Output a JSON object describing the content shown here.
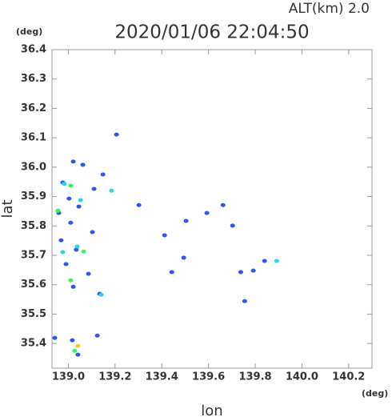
{
  "chart_data": {
    "type": "scatter",
    "title": "2020/01/06 22:04:50",
    "subtitle": "ALT(km) 2.0",
    "x_label": "lon",
    "y_label": "lat",
    "x_unit": "(deg)",
    "y_unit": "(deg)",
    "xlim": [
      138.93,
      140.3
    ],
    "ylim": [
      35.316,
      36.4
    ],
    "xticks": [
      {
        "value": 139,
        "label": "139.0"
      },
      139.2,
      139.4,
      139.6,
      139.8,
      {
        "value": 140,
        "label": "140.0"
      },
      140.2
    ],
    "yticks": [
      35.4,
      35.5,
      35.6,
      35.7,
      35.8,
      35.9,
      {
        "value": 36,
        "label": "36.0"
      },
      36.1,
      36.2,
      36.3,
      36.4
    ],
    "grid": false,
    "series": [
      {
        "color": "#2f55f0",
        "x": [
          139.206,
          139.021,
          139.062,
          138.976,
          139.11,
          139.148,
          139.003,
          139.045,
          138.959,
          139.01,
          139.103,
          138.969,
          139.034,
          139.086,
          138.99,
          139.021,
          139.134,
          139.124,
          139.017,
          138.942,
          139.041,
          139.302,
          139.412,
          139.504,
          139.593,
          139.662,
          139.494,
          139.443,
          139.738,
          139.84,
          139.792,
          139.755,
          139.703
        ],
        "y": [
          36.111,
          36.019,
          36.008,
          35.948,
          35.926,
          35.975,
          35.893,
          35.866,
          35.844,
          35.811,
          35.779,
          35.751,
          35.719,
          35.637,
          35.67,
          35.593,
          35.569,
          35.427,
          35.411,
          35.419,
          35.362,
          35.871,
          35.768,
          35.817,
          35.844,
          35.871,
          35.692,
          35.643,
          35.643,
          35.681,
          35.648,
          35.544,
          35.801
        ]
      },
      {
        "color": "#30d0f0",
        "x": [
          138.983,
          139.052,
          139.185,
          139.038,
          139.892,
          139.141,
          138.976
        ],
        "y": [
          35.943,
          35.888,
          35.92,
          35.73,
          35.681,
          35.566,
          35.711
        ]
      },
      {
        "color": "#40f060",
        "x": [
          138.955,
          139.065,
          139.01,
          139.027,
          139.01
        ],
        "y": [
          35.852,
          35.713,
          35.615,
          35.375,
          35.937
        ]
      },
      {
        "color": "#f0d020",
        "x": [
          139.041
        ],
        "y": [
          35.392
        ]
      }
    ]
  }
}
